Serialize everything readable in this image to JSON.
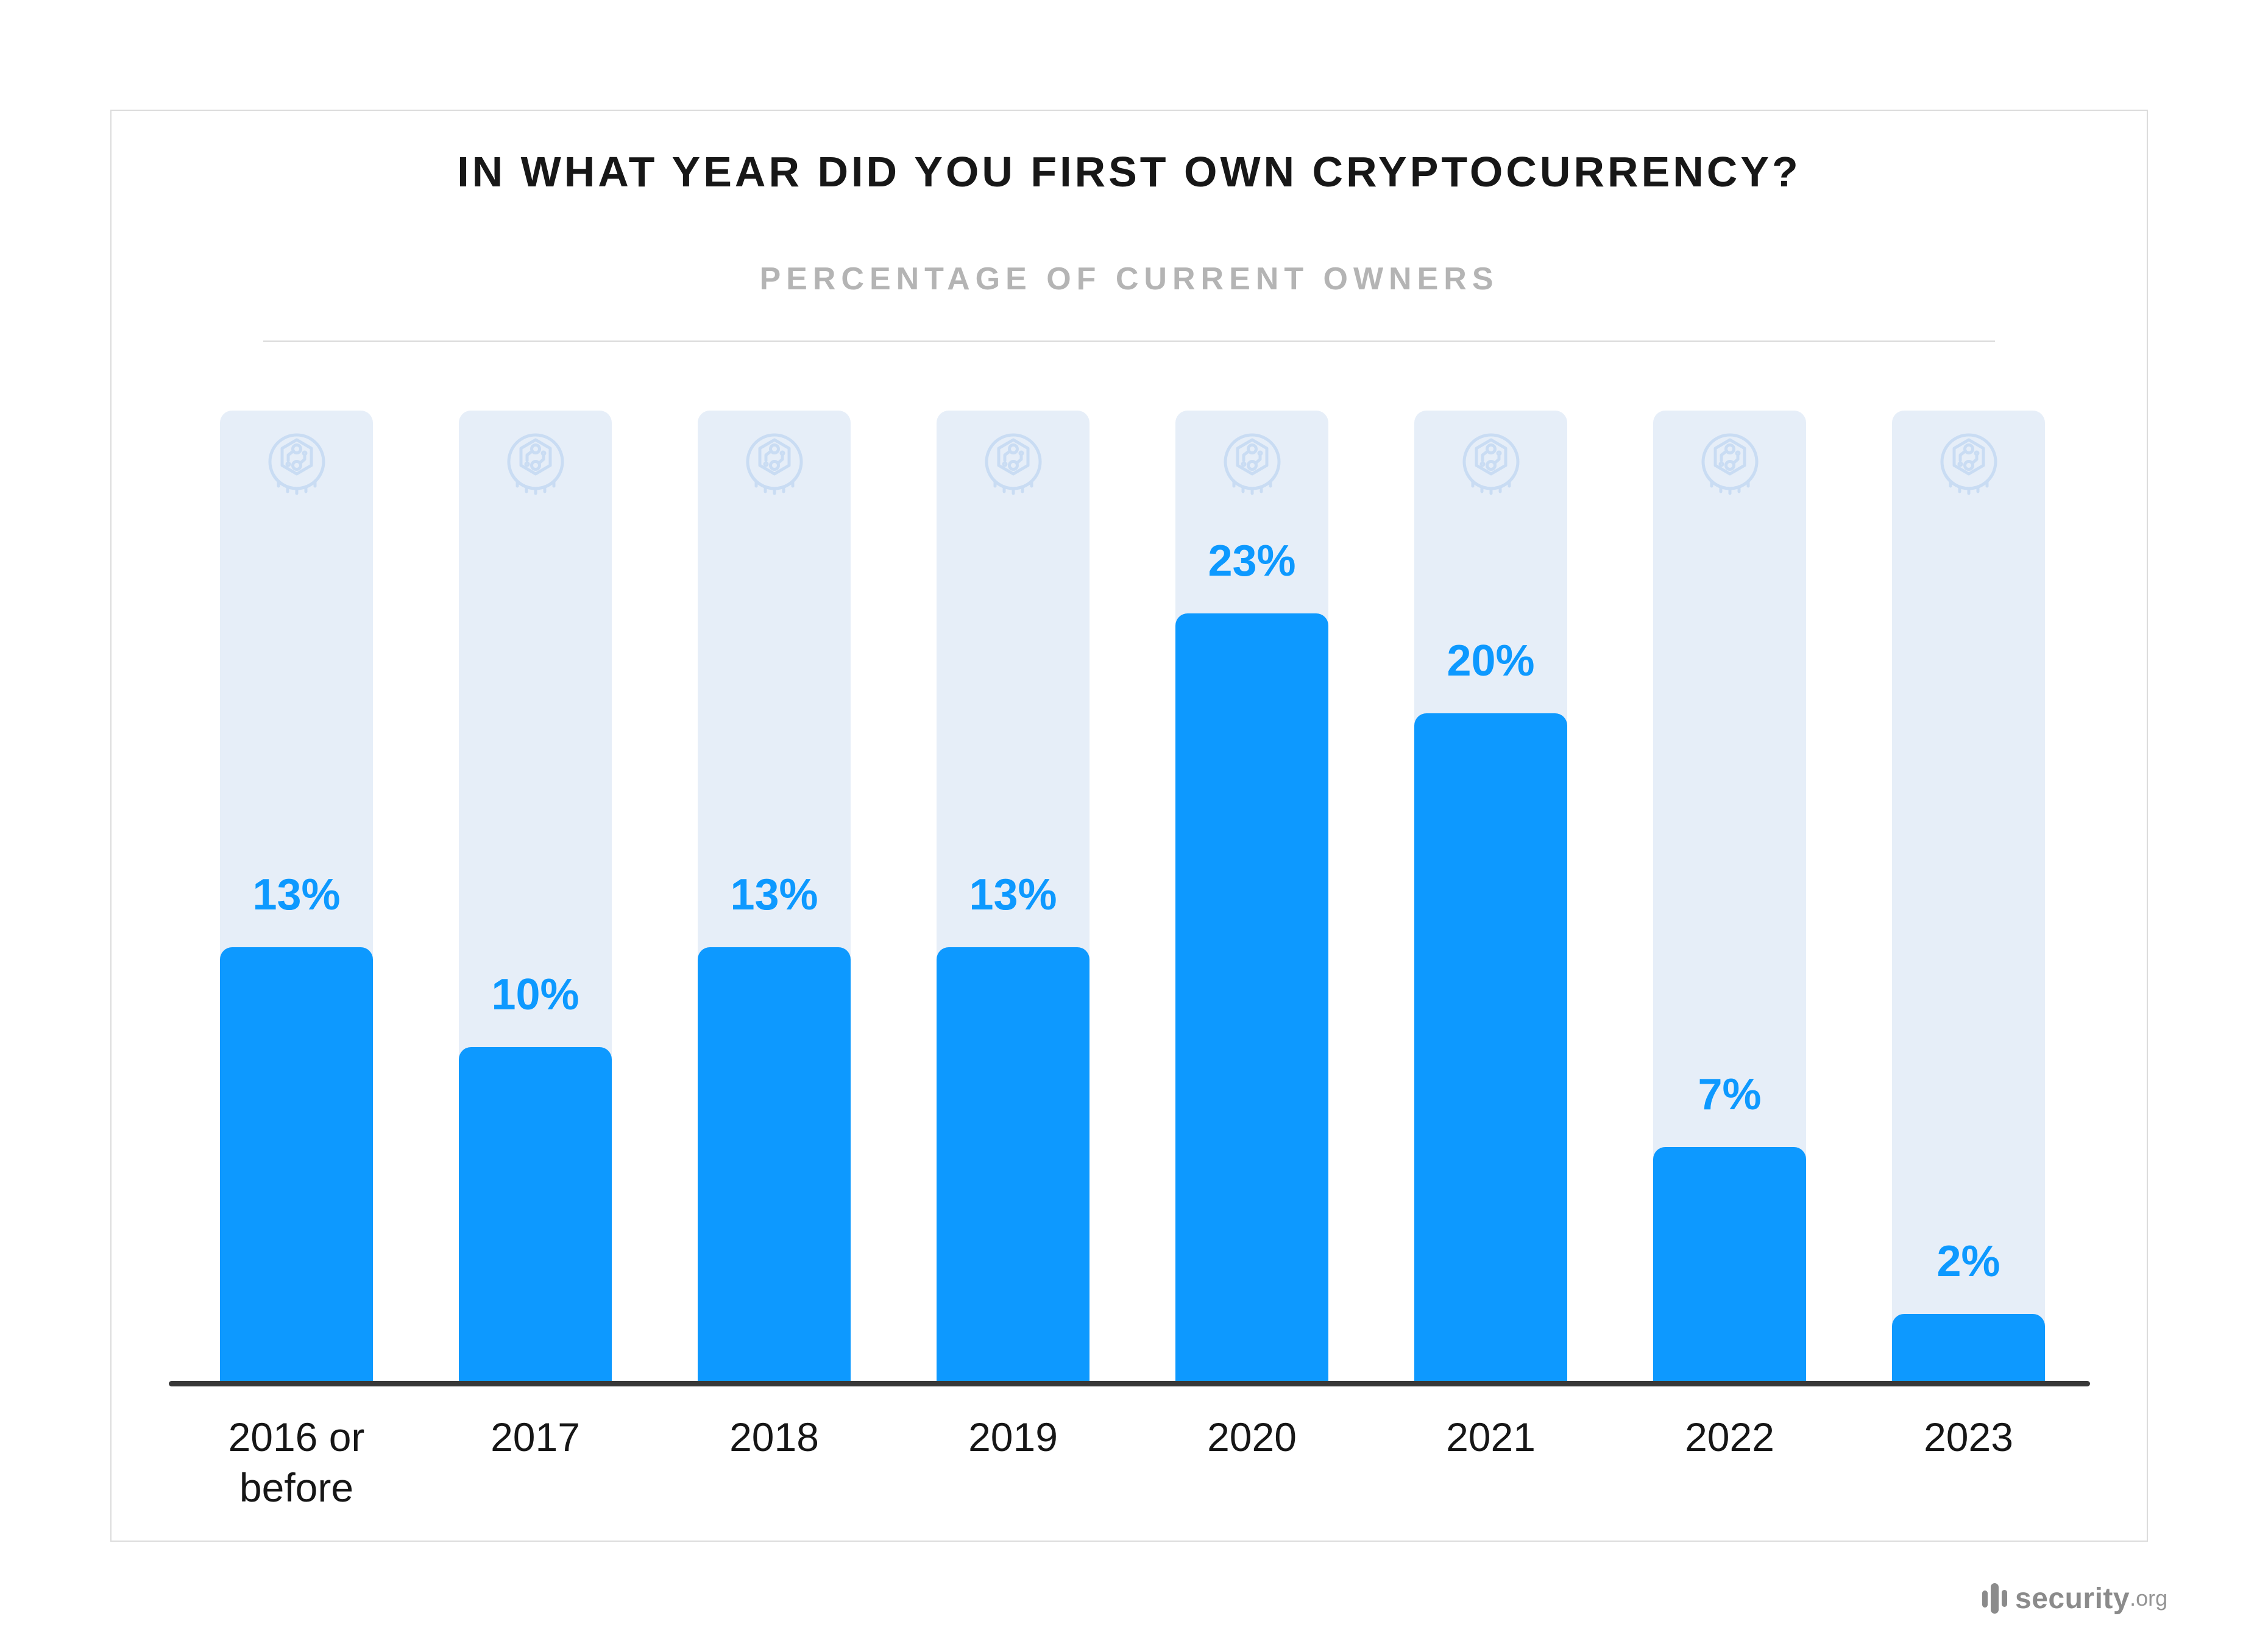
{
  "header": {
    "title": "IN WHAT YEAR DID YOU FIRST OWN CRYPTOCURRENCY?",
    "subtitle": "PERCENTAGE OF CURRENT OWNERS"
  },
  "chart_data": {
    "type": "bar",
    "categories": [
      "2016 or before",
      "2017",
      "2018",
      "2019",
      "2020",
      "2021",
      "2022",
      "2023"
    ],
    "values": [
      13,
      10,
      13,
      13,
      23,
      20,
      7,
      2
    ],
    "value_labels": [
      "13%",
      "10%",
      "13%",
      "13%",
      "23%",
      "20%",
      "7%",
      "2%"
    ],
    "title": "IN WHAT YEAR DID YOU FIRST OWN CRYPTOCURRENCY?",
    "subtitle": "PERCENTAGE OF CURRENT OWNERS",
    "xlabel": "",
    "ylabel": "",
    "ylim": [
      0,
      29
    ],
    "grid": false,
    "legend": false,
    "bar_color": "#0d99ff",
    "track_color": "#e6eef8",
    "value_label_color": "#0d99ff",
    "axis_line_color": "#383838",
    "watermark_icon": "crypto-coin-icon",
    "watermark_icon_color": "#c9dcf3"
  },
  "footer": {
    "logo_icon": "equalizer-bars-icon",
    "logo_text": "security",
    "logo_suffix": ".org",
    "logo_color": "#8b8b8b"
  }
}
